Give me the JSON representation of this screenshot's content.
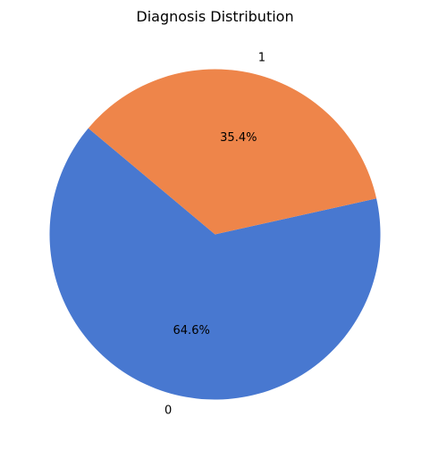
{
  "chart_data": {
    "type": "pie",
    "title": "Diagnosis Distribution",
    "start_angle_deg": 140,
    "direction": "counterclockwise",
    "slices": [
      {
        "label": "0",
        "value": 64.6,
        "pct_label": "64.6%",
        "color": "#4878d0"
      },
      {
        "label": "1",
        "value": 35.4,
        "pct_label": "35.4%",
        "color": "#ee854a"
      }
    ]
  }
}
